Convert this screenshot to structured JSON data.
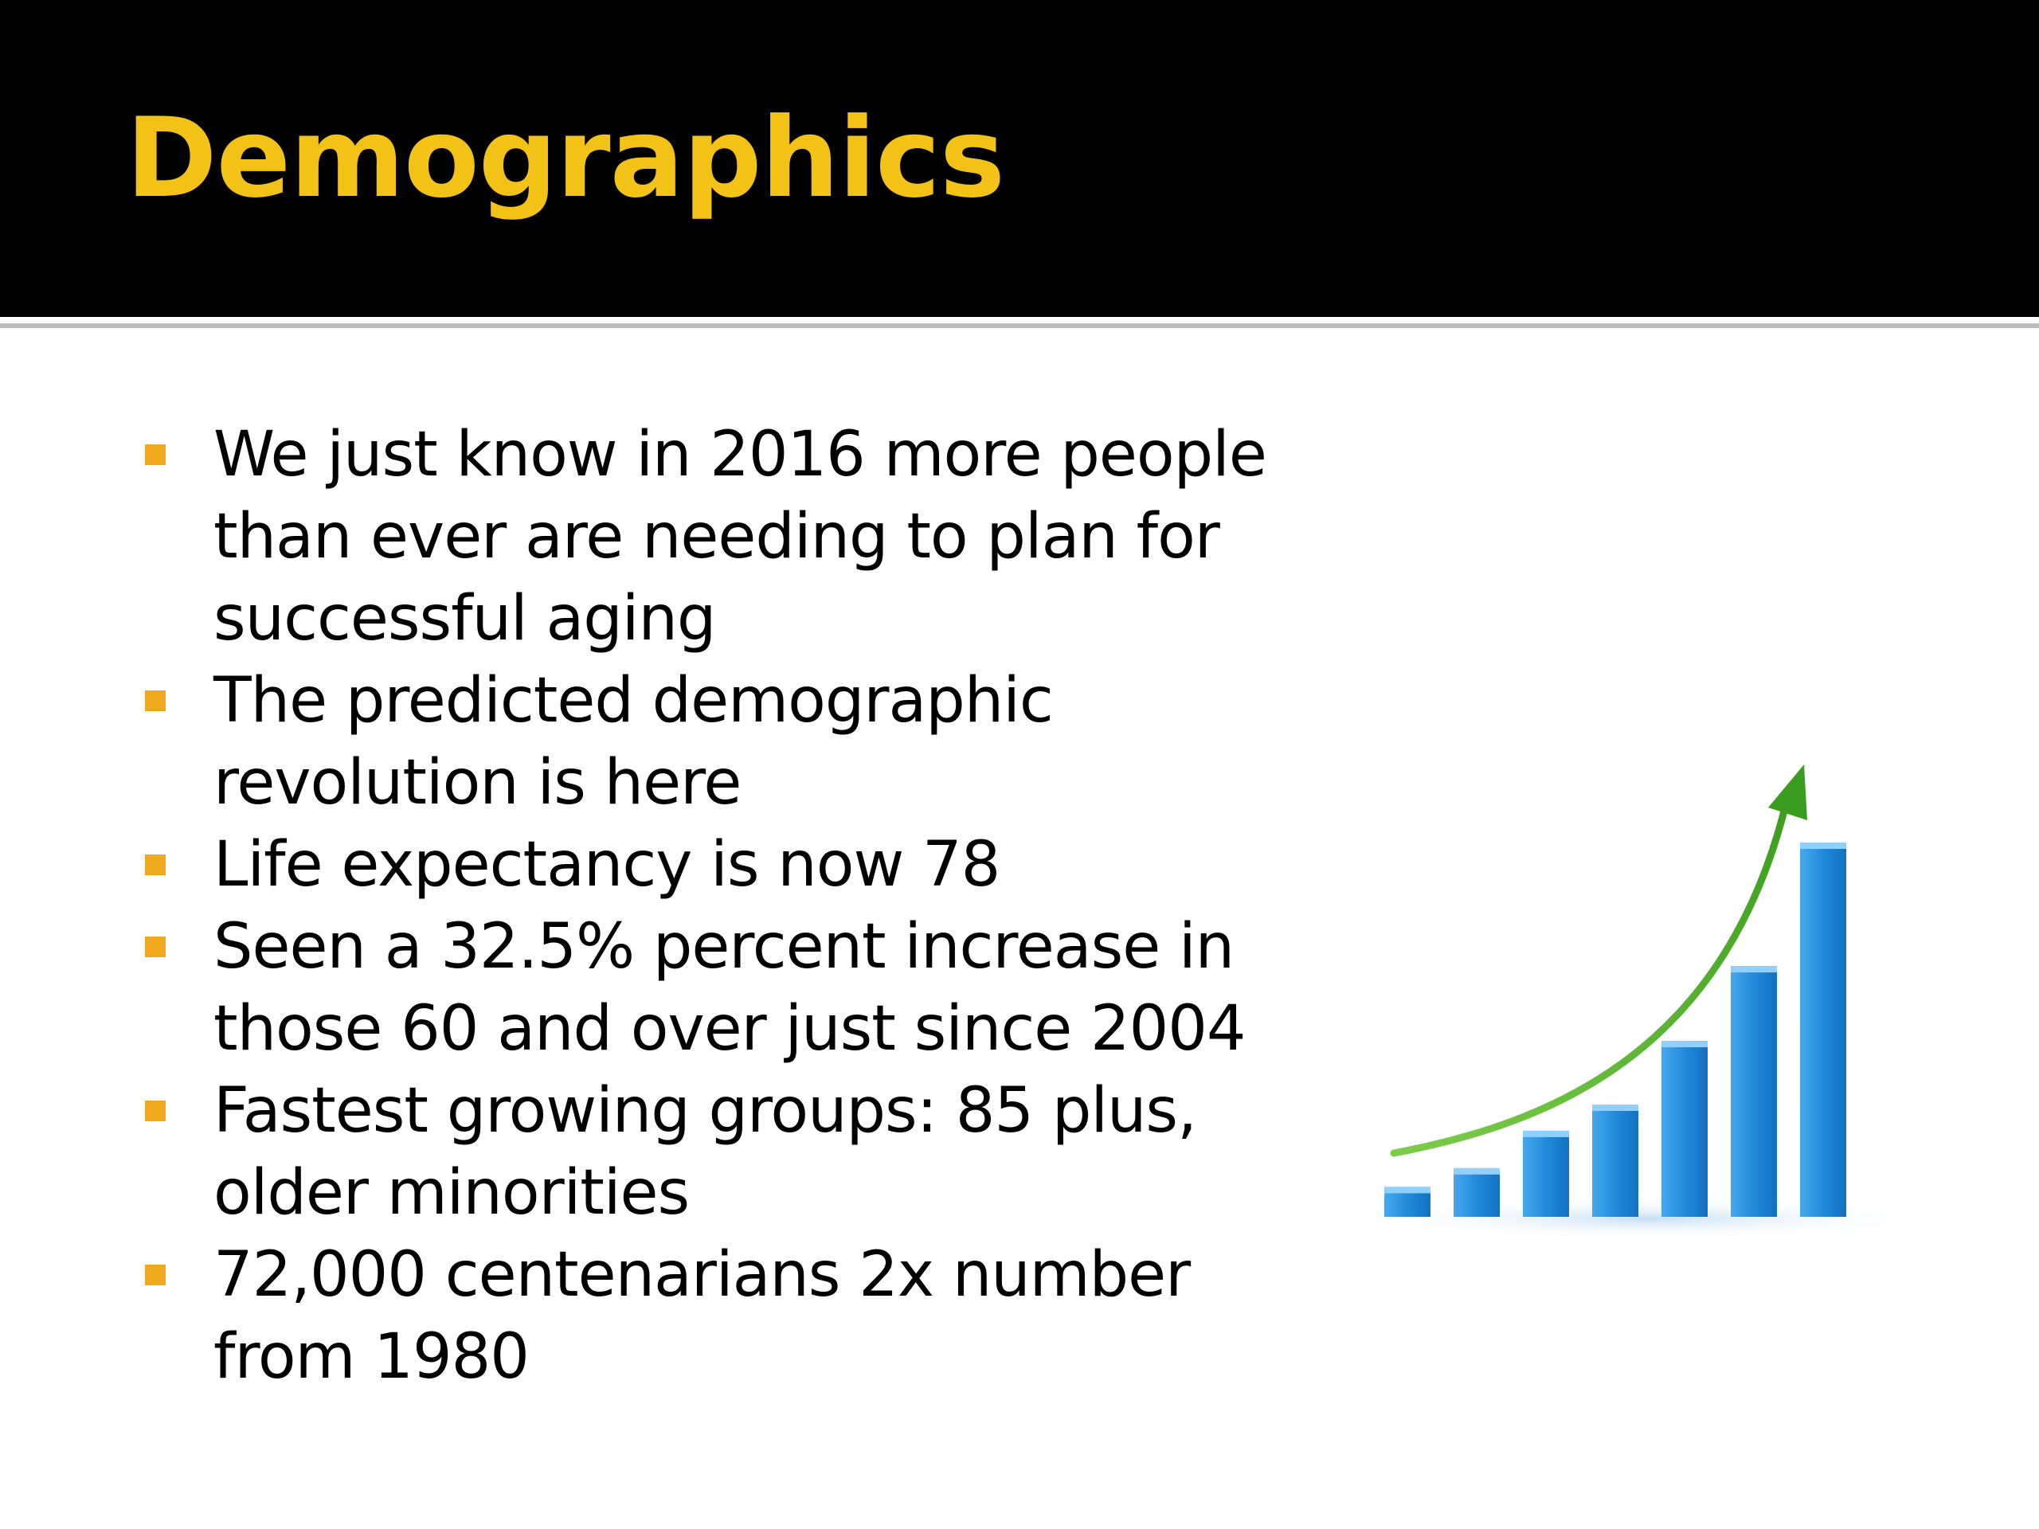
{
  "slide": {
    "title": "Demographics",
    "bullets": [
      "We just know in 2016 more people than ever are needing to plan for successful aging",
      "The predicted demographic revolution is here",
      "Life expectancy is now 78",
      "Seen a 32.5% percent increase in those 60 and over just since 2004",
      "Fastest growing groups: 85 plus, older minorities",
      "72,000 centenarians 2x number from 1980"
    ]
  },
  "colors": {
    "title_bar": "#000000",
    "title_text": "#f2c316",
    "bullet_marker": "#f0a81c",
    "bar_blue": "#1e88d8",
    "arrow_green": "#4caf2a"
  },
  "graphic": {
    "icon": "growth-bar-chart-with-arrow-icon",
    "relative_bar_heights": [
      0.08,
      0.13,
      0.23,
      0.3,
      0.47,
      0.67,
      1.0
    ]
  }
}
